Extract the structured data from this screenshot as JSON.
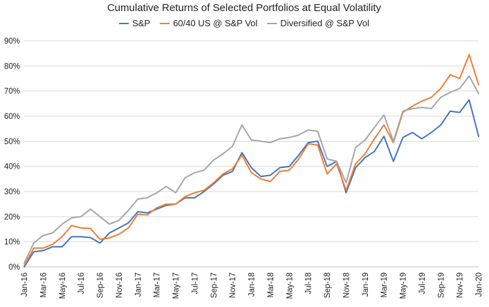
{
  "chart_data": {
    "type": "line",
    "title": "Cumulative Returns of Selected Portfolios at Equal Volatility",
    "xlabel": "",
    "ylabel": "",
    "ylim": [
      0,
      90
    ],
    "yticks": [
      0,
      10,
      20,
      30,
      40,
      50,
      60,
      70,
      80,
      90
    ],
    "ytick_labels": [
      "0%",
      "10%",
      "20%",
      "30%",
      "40%",
      "50%",
      "60%",
      "70%",
      "80%",
      "90%"
    ],
    "grid": "horizontal",
    "legend_position": "top-center",
    "x_tick_labels": [
      "Jan-16",
      "Mar-16",
      "May-16",
      "Jul-16",
      "Sep-16",
      "Nov-16",
      "Jan-17",
      "Mar-17",
      "May-17",
      "Jul-17",
      "Sep-17",
      "Nov-17",
      "Jan-18",
      "Mar-18",
      "May-18",
      "Jul-18",
      "Sep-18",
      "Nov-18",
      "Jan-19",
      "Mar-19",
      "May-19",
      "Jul-19",
      "Sep-19",
      "Nov-19",
      "Jan-20"
    ],
    "categories": [
      "Jan-16",
      "Feb-16",
      "Mar-16",
      "Apr-16",
      "May-16",
      "Jun-16",
      "Jul-16",
      "Aug-16",
      "Sep-16",
      "Oct-16",
      "Nov-16",
      "Dec-16",
      "Jan-17",
      "Feb-17",
      "Mar-17",
      "Apr-17",
      "May-17",
      "Jun-17",
      "Jul-17",
      "Aug-17",
      "Sep-17",
      "Oct-17",
      "Nov-17",
      "Dec-17",
      "Jan-18",
      "Feb-18",
      "Mar-18",
      "Apr-18",
      "May-18",
      "Jun-18",
      "Jul-18",
      "Aug-18",
      "Sep-18",
      "Oct-18",
      "Nov-18",
      "Dec-18",
      "Jan-19",
      "Feb-19",
      "Mar-19",
      "Apr-19",
      "May-19",
      "Jun-19",
      "Jul-19",
      "Aug-19",
      "Sep-19",
      "Oct-19",
      "Nov-19",
      "Dec-19",
      "Jan-20"
    ],
    "series": [
      {
        "name": "S&P",
        "color": "#4472c4",
        "values": [
          0,
          6,
          6.5,
          8,
          8,
          12,
          12,
          11.7,
          9.5,
          13.5,
          15.5,
          17.5,
          22,
          21.5,
          23,
          24.5,
          25,
          27.5,
          27.5,
          30,
          33,
          36.5,
          38,
          45.5,
          39.5,
          36,
          36.5,
          39.5,
          40,
          44.5,
          49.5,
          50,
          40,
          42,
          29.5,
          39.5,
          43.5,
          46,
          52,
          42,
          51.5,
          53.5,
          51,
          53.5,
          56.5,
          62,
          61.5,
          66.5,
          52
        ]
      },
      {
        "name": "60/40 US @ S&P Vol",
        "color": "#ed7d31",
        "values": [
          0.5,
          7.5,
          7.5,
          9,
          12,
          16.5,
          15.5,
          15.3,
          11,
          11.5,
          13,
          15.5,
          21,
          20.7,
          23.5,
          25,
          25,
          28,
          29.5,
          30.5,
          33.5,
          37,
          39,
          44.5,
          37.5,
          35,
          34,
          38,
          38.5,
          43,
          49,
          48.5,
          37,
          41,
          30.5,
          41,
          45,
          51,
          56.5,
          49.5,
          61.5,
          64,
          66,
          67.5,
          71,
          76.5,
          75,
          84.5,
          72.5
        ]
      },
      {
        "name": "Diversified @ S&P Vol",
        "color": "#a5a5a5",
        "values": [
          1.5,
          9.5,
          12.5,
          13.5,
          17,
          19.5,
          20,
          23,
          20,
          17,
          18.5,
          22.5,
          27,
          27.5,
          29.5,
          32,
          29.5,
          35.5,
          37.5,
          38.5,
          42.5,
          45,
          48,
          56.5,
          50.5,
          50,
          49.5,
          51,
          51.5,
          52.5,
          54.5,
          54,
          43,
          42,
          33.5,
          47.5,
          50.5,
          55.5,
          60.5,
          50,
          62,
          63,
          63.5,
          63,
          67.5,
          69.5,
          71,
          76,
          69
        ]
      }
    ]
  }
}
